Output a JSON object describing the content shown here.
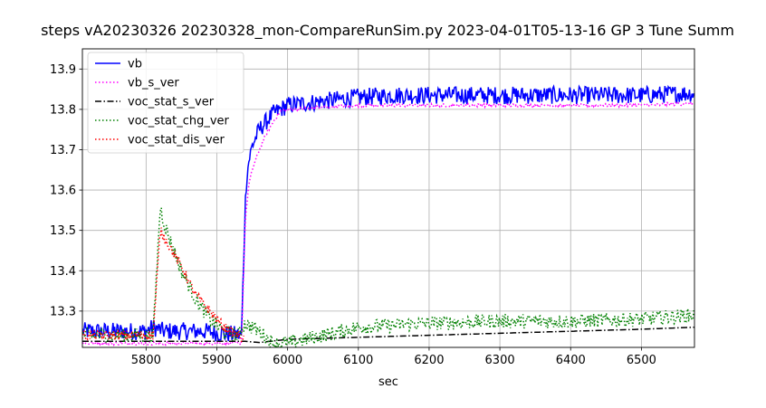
{
  "chart_data": {
    "type": "line",
    "title": "steps vA20230326 20230328_mon-CompareRunSim.py   2023-04-01T05-13-16 GP 3 Tune Summ",
    "xlabel": "sec",
    "ylabel": "",
    "xlim": [
      5710,
      6575
    ],
    "ylim": [
      13.21,
      13.95
    ],
    "xticks": [
      5800,
      5900,
      6000,
      6100,
      6200,
      6300,
      6400,
      6500
    ],
    "yticks": [
      13.3,
      13.4,
      13.5,
      13.6,
      13.7,
      13.8,
      13.9
    ],
    "grid": true,
    "legend_position": "top-left",
    "colors": {
      "vb": "#0000ff",
      "vb_s_ver": "#ff00ff",
      "voc_stat_s_ver": "#000000",
      "voc_stat_chg_ver": "#008000",
      "voc_stat_dis_ver": "#ff0000"
    },
    "series": [
      {
        "name": "vb",
        "style": "solid",
        "noise": 0.022,
        "x": [
          5710,
          5800,
          5810,
          5825,
          5880,
          5935,
          5940,
          5942,
          5945,
          5950,
          5960,
          5980,
          6000,
          6050,
          6100,
          6150,
          6200,
          6300,
          6400,
          6500,
          6575
        ],
        "y": [
          13.25,
          13.25,
          13.26,
          13.25,
          13.25,
          13.24,
          13.56,
          13.63,
          13.67,
          13.71,
          13.75,
          13.79,
          13.81,
          13.82,
          13.83,
          13.835,
          13.835,
          13.835,
          13.835,
          13.835,
          13.84
        ]
      },
      {
        "name": "vb_s_ver",
        "style": "dotted",
        "noise": 0.004,
        "x": [
          5710,
          5900,
          5935,
          5940,
          5945,
          5950,
          5960,
          5970,
          5980,
          5990,
          6000,
          6050,
          6100,
          6200,
          6300,
          6400,
          6500,
          6575
        ],
        "y": [
          13.22,
          13.22,
          13.22,
          13.52,
          13.61,
          13.65,
          13.7,
          13.74,
          13.77,
          13.795,
          13.8,
          13.805,
          13.81,
          13.81,
          13.81,
          13.81,
          13.81,
          13.815
        ]
      },
      {
        "name": "voc_stat_s_ver",
        "style": "dashdot",
        "noise": 0.0,
        "x": [
          5710,
          5940,
          5960,
          6000,
          6100,
          6200,
          6300,
          6400,
          6500,
          6575
        ],
        "y": [
          13.225,
          13.225,
          13.222,
          13.23,
          13.235,
          13.24,
          13.245,
          13.25,
          13.255,
          13.26
        ]
      },
      {
        "name": "voc_stat_chg_ver",
        "style": "dotted",
        "noise": 0.018,
        "x": [
          5710,
          5810,
          5815,
          5820,
          5825,
          5835,
          5850,
          5870,
          5890,
          5910,
          5930,
          5940,
          5960,
          5980,
          6000,
          6050,
          6100,
          6200,
          6300,
          6400,
          6500,
          6575
        ],
        "y": [
          13.24,
          13.24,
          13.4,
          13.56,
          13.52,
          13.47,
          13.4,
          13.33,
          13.28,
          13.25,
          13.24,
          13.27,
          13.25,
          13.22,
          13.22,
          13.24,
          13.26,
          13.27,
          13.275,
          13.275,
          13.28,
          13.29
        ]
      },
      {
        "name": "voc_stat_dis_ver",
        "style": "dotted",
        "noise": 0.012,
        "x": [
          5710,
          5810,
          5820,
          5830,
          5850,
          5870,
          5890,
          5910,
          5930,
          5938
        ],
        "y": [
          13.24,
          13.24,
          13.5,
          13.47,
          13.41,
          13.34,
          13.3,
          13.26,
          13.24,
          13.23
        ]
      }
    ]
  }
}
